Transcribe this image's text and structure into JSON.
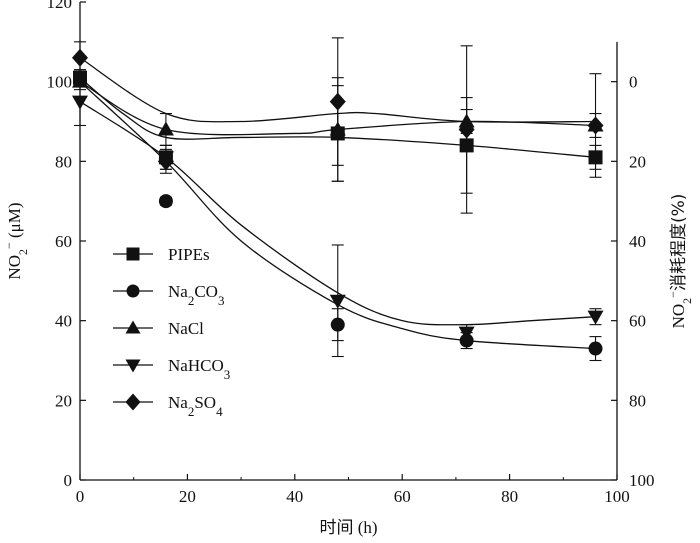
{
  "chart_data": {
    "type": "line",
    "xlabel": "时间 (h)",
    "ylabel": {
      "main": "NO",
      "sub": "2",
      "sup": "−",
      "unit": "(μM)"
    },
    "y2label": {
      "main": "NO",
      "sub": "2",
      "sup": "−",
      "rest": "消耗程度(%)"
    },
    "xlim": [
      0,
      100
    ],
    "ylim": [
      0,
      120
    ],
    "y2lim": [
      100,
      -15
    ],
    "xticks": [
      "0",
      "20",
      "40",
      "60",
      "80",
      "100"
    ],
    "yticks": [
      "0",
      "20",
      "40",
      "60",
      "80",
      "100",
      "120"
    ],
    "y2ticks": [
      "0",
      "20",
      "40",
      "60",
      "80",
      "100"
    ],
    "legend_position": "left",
    "series": [
      {
        "name": "PIPEs",
        "name_html": "PIPEs",
        "marker": "square",
        "x": [
          0,
          16,
          48,
          72,
          96
        ],
        "y": [
          101,
          81,
          87,
          84,
          81
        ],
        "err": [
          2,
          3,
          12,
          12,
          3
        ],
        "curve": [
          [
            0,
            101
          ],
          [
            8,
            92
          ],
          [
            16,
            86
          ],
          [
            30,
            86
          ],
          [
            48,
            86
          ],
          [
            72,
            84
          ],
          [
            96,
            81
          ]
        ]
      },
      {
        "name": "Na2CO3",
        "name_html": "Na<tspan baseline-shift='sub' font-size='13'>2</tspan>CO<tspan baseline-shift='sub' font-size='13'>3</tspan>",
        "marker": "circle",
        "x": [
          0,
          16,
          48,
          72,
          96
        ],
        "y": [
          101,
          70,
          39,
          35,
          33
        ],
        "err": [
          2,
          1,
          4,
          2,
          3
        ],
        "curve": [
          [
            0,
            100
          ],
          [
            16,
            80
          ],
          [
            30,
            60
          ],
          [
            48,
            44
          ],
          [
            60,
            38
          ],
          [
            72,
            35
          ],
          [
            96,
            33
          ]
        ]
      },
      {
        "name": "NaCl",
        "name_html": "NaCl",
        "marker": "triangle",
        "x": [
          0,
          16,
          48,
          72,
          96
        ],
        "y": [
          100,
          88,
          88,
          90,
          89
        ],
        "err": [
          2,
          4,
          13,
          3,
          3
        ],
        "curve": [
          [
            0,
            100
          ],
          [
            16,
            88
          ],
          [
            40,
            87
          ],
          [
            48,
            88
          ],
          [
            72,
            90
          ],
          [
            96,
            89
          ]
        ]
      },
      {
        "name": "NaHCO3",
        "name_html": "NaHCO<tspan baseline-shift='sub' font-size='13'>3</tspan>",
        "marker": "triangle-down",
        "x": [
          0,
          16,
          48,
          72,
          96
        ],
        "y": [
          95,
          81,
          45,
          37,
          41
        ],
        "err": [
          6,
          3,
          14,
          2,
          2
        ],
        "curve": [
          [
            0,
            95
          ],
          [
            16,
            81
          ],
          [
            30,
            64
          ],
          [
            48,
            47
          ],
          [
            60,
            40
          ],
          [
            72,
            39
          ],
          [
            84,
            40
          ],
          [
            96,
            41
          ]
        ]
      },
      {
        "name": "Na2SO4",
        "name_html": "Na<tspan baseline-shift='sub' font-size='13'>2</tspan>SO<tspan baseline-shift='sub' font-size='13'>4</tspan>",
        "marker": "diamond",
        "x": [
          0,
          16,
          48,
          72,
          96
        ],
        "y": [
          106,
          80,
          95,
          88,
          89
        ],
        "err": [
          4,
          3,
          16,
          21,
          13
        ],
        "curve": [
          [
            0,
            106
          ],
          [
            16,
            92
          ],
          [
            30,
            90
          ],
          [
            48,
            92
          ],
          [
            55,
            92
          ],
          [
            72,
            90
          ],
          [
            96,
            90
          ]
        ]
      }
    ]
  }
}
